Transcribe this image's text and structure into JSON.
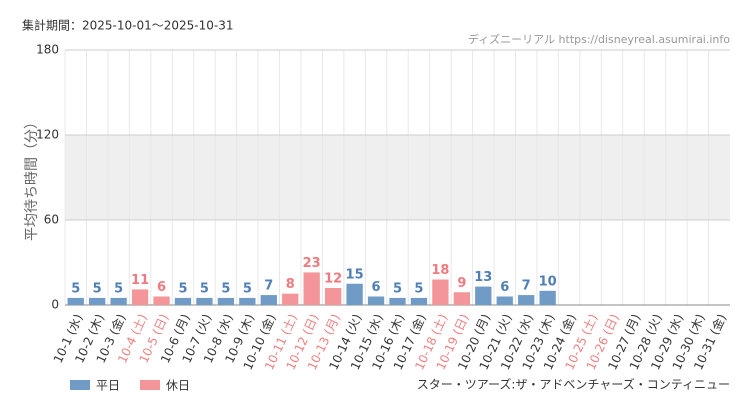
{
  "chart_data": {
    "type": "bar",
    "period": "集計期間：2025-10-01〜2025-10-31",
    "source": "ディズニーリアル https://disneyreal.asumirai.info",
    "subtitle": "スター・ツアーズ:ザ・アドベンチャーズ・コンティニュー",
    "y_label": "平均待ち時間（分）",
    "categories": [
      "10-1 (水)",
      "10-2 (木)",
      "10-3 (金)",
      "10-4 (土)",
      "10-5 (日)",
      "10-6 (月)",
      "10-7 (火)",
      "10-8 (水)",
      "10-9 (木)",
      "10-10 (金)",
      "10-11 (土)",
      "10-12 (日)",
      "10-13 (月)",
      "10-14 (火)",
      "10-15 (水)",
      "10-16 (木)",
      "10-17 (金)",
      "10-18 (土)",
      "10-19 (日)",
      "10-20 (月)",
      "10-21 (火)",
      "10-22 (水)",
      "10-23 (木)",
      "10-24 (金)",
      "10-25 (土)",
      "10-26 (日)",
      "10-27 (月)",
      "10-28 (火)",
      "10-29 (水)",
      "10-30 (木)",
      "10-31 (金)"
    ],
    "label_colors": [
      "#333333",
      "#333333",
      "#333333",
      "#f08080",
      "#f08080",
      "#333333",
      "#333333",
      "#333333",
      "#333333",
      "#333333",
      "#f08080",
      "#f08080",
      "#f08080",
      "#333333",
      "#333333",
      "#333333",
      "#333333",
      "#f08080",
      "#f08080",
      "#333333",
      "#333333",
      "#333333",
      "#333333",
      "#333333",
      "#f08080",
      "#f08080",
      "#333333",
      "#333333",
      "#333333",
      "#333333",
      "#333333"
    ],
    "series": [
      {
        "name": "平日",
        "color": "#6f9bc6",
        "label_color": "#4f7fb5",
        "values": [
          5,
          5,
          5,
          null,
          null,
          5,
          5,
          5,
          5,
          7,
          null,
          null,
          null,
          15,
          6,
          5,
          5,
          null,
          null,
          13,
          6,
          7,
          10,
          null,
          null,
          null,
          null,
          null,
          null,
          null,
          null
        ]
      },
      {
        "name": "休日",
        "color": "#f4959a",
        "label_color": "#ef7a80",
        "values": [
          null,
          null,
          null,
          11,
          6,
          null,
          null,
          null,
          null,
          null,
          8,
          23,
          12,
          null,
          null,
          null,
          null,
          18,
          9,
          null,
          null,
          null,
          null,
          null,
          null,
          null,
          null,
          null,
          null,
          null,
          null
        ]
      }
    ],
    "ylim": [
      0,
      180
    ],
    "yticks": [
      0,
      60,
      120,
      180
    ],
    "shaded_range": [
      60,
      120
    ],
    "grid": true
  }
}
